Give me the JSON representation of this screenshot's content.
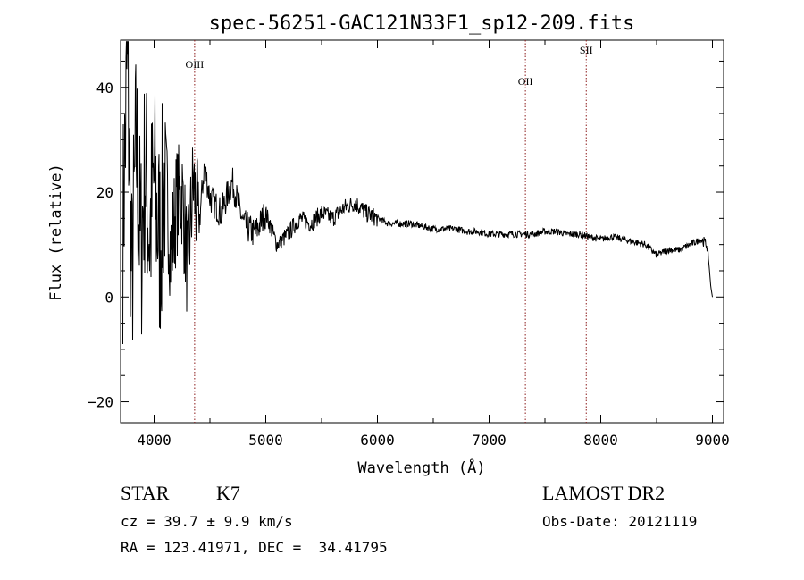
{
  "chart_data": {
    "type": "line",
    "title": "spec-56251-GAC121N33F1_sp12-209.fits",
    "xlabel": "Wavelength (Å)",
    "ylabel": "Flux (relative)",
    "xlim": [
      3700,
      9100
    ],
    "ylim": [
      -24,
      49
    ],
    "x_ticks": [
      4000,
      5000,
      6000,
      7000,
      8000,
      9000
    ],
    "y_ticks": [
      -20,
      0,
      20,
      40
    ],
    "grid": false,
    "lines": [
      {
        "label": "OIII",
        "wavelength": 4363
      },
      {
        "label": "OII",
        "wavelength": 7325
      },
      {
        "label": "SII",
        "wavelength": 7870
      }
    ],
    "spectrum": [
      [
        3720,
        12
      ],
      [
        3760,
        45
      ],
      [
        3800,
        2
      ],
      [
        3840,
        30
      ],
      [
        3880,
        8
      ],
      [
        3920,
        25
      ],
      [
        3960,
        12
      ],
      [
        4000,
        22
      ],
      [
        4050,
        10
      ],
      [
        4100,
        24
      ],
      [
        4150,
        8
      ],
      [
        4200,
        18
      ],
      [
        4250,
        20
      ],
      [
        4300,
        5
      ],
      [
        4350,
        22
      ],
      [
        4400,
        13
      ],
      [
        4450,
        25
      ],
      [
        4500,
        19
      ],
      [
        4600,
        16
      ],
      [
        4700,
        22
      ],
      [
        4800,
        14
      ],
      [
        4900,
        12
      ],
      [
        5000,
        16
      ],
      [
        5100,
        10
      ],
      [
        5200,
        12
      ],
      [
        5300,
        15
      ],
      [
        5400,
        14
      ],
      [
        5500,
        16
      ],
      [
        5600,
        15
      ],
      [
        5700,
        17
      ],
      [
        5800,
        18
      ],
      [
        5900,
        16
      ],
      [
        6000,
        15
      ],
      [
        6100,
        14
      ],
      [
        6200,
        14
      ],
      [
        6300,
        14
      ],
      [
        6400,
        13.5
      ],
      [
        6500,
        13
      ],
      [
        6600,
        13
      ],
      [
        6700,
        13
      ],
      [
        6800,
        12.5
      ],
      [
        6900,
        12.5
      ],
      [
        7000,
        12
      ],
      [
        7100,
        12
      ],
      [
        7200,
        12
      ],
      [
        7300,
        12
      ],
      [
        7400,
        12
      ],
      [
        7500,
        12.5
      ],
      [
        7600,
        12.5
      ],
      [
        7700,
        12
      ],
      [
        7800,
        12
      ],
      [
        7900,
        11.5
      ],
      [
        8000,
        11
      ],
      [
        8100,
        11.5
      ],
      [
        8200,
        11
      ],
      [
        8300,
        10.5
      ],
      [
        8400,
        10
      ],
      [
        8500,
        8
      ],
      [
        8600,
        9
      ],
      [
        8700,
        9
      ],
      [
        8800,
        10
      ],
      [
        8900,
        11
      ],
      [
        8950,
        10
      ],
      [
        8970,
        6
      ],
      [
        8985,
        2
      ],
      [
        9000,
        0
      ]
    ]
  },
  "info": {
    "object_class": "STAR",
    "subclass": "K7",
    "survey": "LAMOST DR2",
    "redshift": "cz = 39.7 ± 9.9 km/s",
    "obs_date": "Obs-Date: 20121119",
    "coords": "RA = 123.41971, DEC =  34.41795"
  },
  "colors": {
    "spectrum": "#000000",
    "line_marker": "#8b1a1a",
    "axis": "#000000"
  }
}
